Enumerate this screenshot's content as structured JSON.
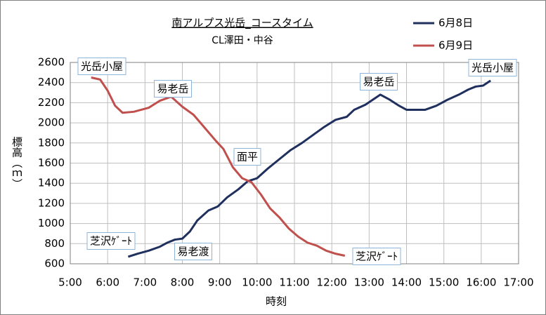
{
  "chart_data": {
    "type": "line",
    "title": "南アルプス光岳_コースタイム",
    "subtitle": "CL澤田・中谷",
    "x_label": "時刻",
    "y_label": "標高（ｍ）",
    "xlim": [
      5,
      17
    ],
    "xticks": [
      {
        "value": 5,
        "label": "5:00"
      },
      {
        "value": 6,
        "label": "6:00"
      },
      {
        "value": 7,
        "label": "7:00"
      },
      {
        "value": 8,
        "label": "8:00"
      },
      {
        "value": 9,
        "label": "9:00"
      },
      {
        "value": 10,
        "label": "10:00"
      },
      {
        "value": 11,
        "label": "11:00"
      },
      {
        "value": 12,
        "label": "12:00"
      },
      {
        "value": 13,
        "label": "13:00"
      },
      {
        "value": 14,
        "label": "14:00"
      },
      {
        "value": 15,
        "label": "15:00"
      },
      {
        "value": 16,
        "label": "16:00"
      },
      {
        "value": 17,
        "label": "17:00"
      }
    ],
    "ylim": [
      600,
      2600
    ],
    "yticks": [
      600,
      800,
      1000,
      1200,
      1400,
      1600,
      1800,
      2000,
      2200,
      2400,
      2600
    ],
    "grid": true,
    "legend": "top-right",
    "series": [
      {
        "name": "6月8日",
        "color": "#1f2f5e",
        "x": [
          6.55,
          6.8,
          7.1,
          7.4,
          7.6,
          7.8,
          8.0,
          8.2,
          8.4,
          8.7,
          8.95,
          9.2,
          9.5,
          9.75,
          10.0,
          10.3,
          10.6,
          10.9,
          11.2,
          11.5,
          11.8,
          12.1,
          12.4,
          12.6,
          12.9,
          13.3,
          13.55,
          13.8,
          14.0,
          14.5,
          14.8,
          15.1,
          15.4,
          15.65,
          15.85,
          16.05,
          16.25
        ],
        "values": [
          670,
          700,
          730,
          770,
          810,
          840,
          850,
          920,
          1030,
          1130,
          1170,
          1260,
          1340,
          1420,
          1450,
          1550,
          1640,
          1730,
          1800,
          1880,
          1960,
          2030,
          2060,
          2130,
          2180,
          2280,
          2230,
          2170,
          2130,
          2130,
          2170,
          2230,
          2280,
          2330,
          2360,
          2370,
          2420
        ]
      },
      {
        "name": "6月9日",
        "color": "#c0504d",
        "x": [
          5.56,
          5.8,
          6.0,
          6.2,
          6.4,
          6.7,
          7.1,
          7.4,
          7.7,
          8.0,
          8.3,
          8.6,
          8.9,
          9.1,
          9.35,
          9.6,
          9.85,
          10.1,
          10.35,
          10.6,
          10.85,
          11.1,
          11.35,
          11.6,
          11.85,
          12.1,
          12.35
        ],
        "values": [
          2450,
          2430,
          2320,
          2170,
          2100,
          2110,
          2150,
          2220,
          2260,
          2160,
          2080,
          1950,
          1820,
          1740,
          1560,
          1450,
          1410,
          1290,
          1150,
          1060,
          950,
          870,
          810,
          780,
          730,
          700,
          680
        ]
      }
    ],
    "annotations": [
      "光岳小屋",
      "易老岳",
      "面平",
      "芝沢ｹﾞｰﾄ",
      "易老渡",
      "芝沢ｹﾞｰﾄ",
      "易老岳",
      "光岳小屋"
    ]
  }
}
